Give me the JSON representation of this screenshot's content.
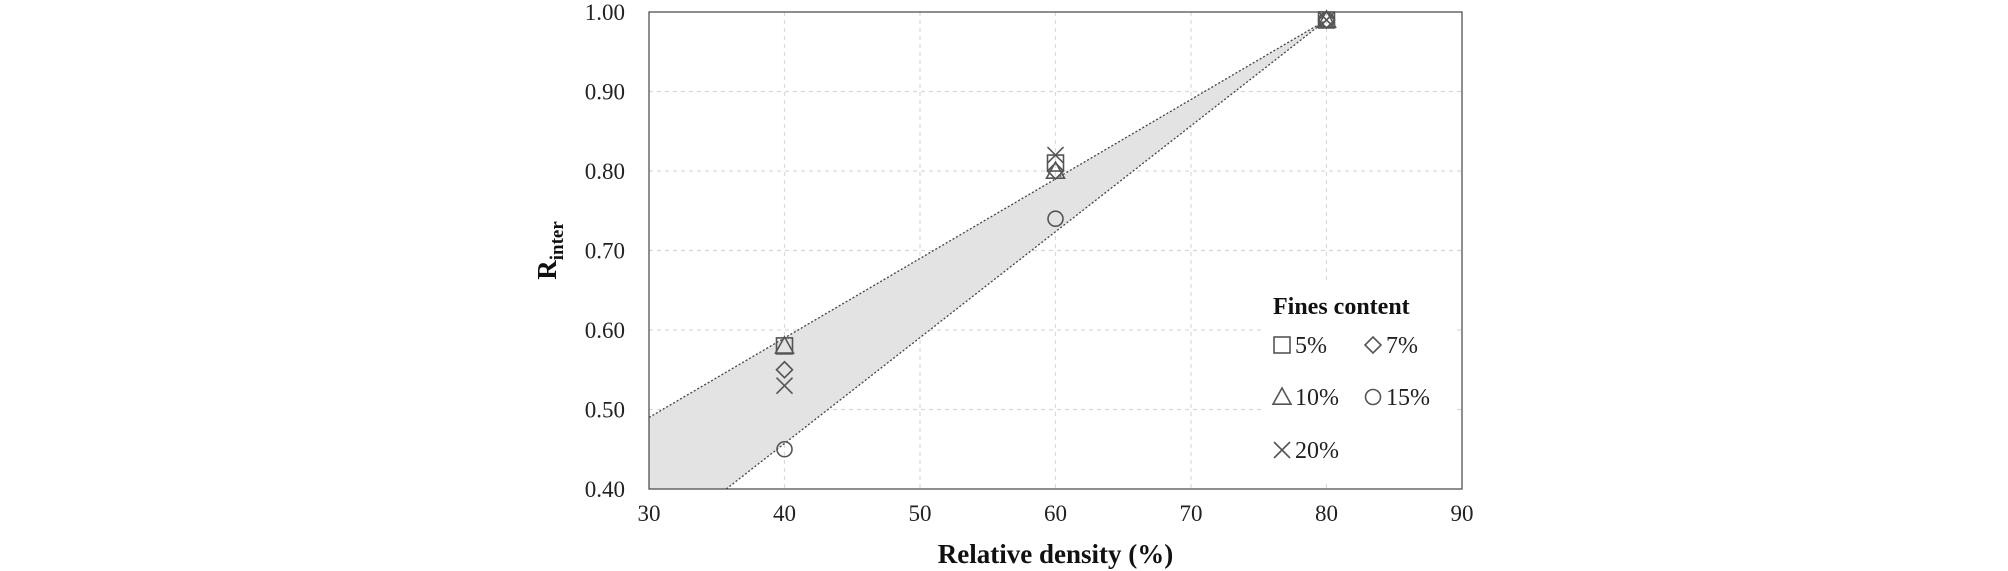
{
  "chart_data": {
    "type": "scatter",
    "xlabel": "Relative density (%)",
    "ylabel_main": "R",
    "ylabel_sub": "inter",
    "xlim": [
      30,
      90
    ],
    "ylim": [
      0.4,
      1.0
    ],
    "xticks": [
      30,
      40,
      50,
      60,
      70,
      80,
      90
    ],
    "xtick_labels": [
      "30",
      "40",
      "50",
      "60",
      "70",
      "80",
      "90"
    ],
    "yticks": [
      0.4,
      0.5,
      0.6,
      0.7,
      0.8,
      0.9,
      1.0
    ],
    "ytick_labels": [
      "0.40",
      "0.50",
      "0.60",
      "0.70",
      "0.80",
      "0.90",
      "1.00"
    ],
    "grid": true,
    "legend_title": "Fines content",
    "legend_position": "right",
    "series": [
      {
        "name": "5%",
        "marker": "square",
        "x": [
          40,
          60,
          80
        ],
        "y": [
          0.58,
          0.81,
          0.99
        ]
      },
      {
        "name": "7%",
        "marker": "diamond",
        "x": [
          40,
          60,
          80
        ],
        "y": [
          0.55,
          0.8,
          0.99
        ]
      },
      {
        "name": "10%",
        "marker": "triangle",
        "x": [
          40,
          60,
          80
        ],
        "y": [
          0.58,
          0.8,
          0.99
        ]
      },
      {
        "name": "15%",
        "marker": "circle",
        "x": [
          40,
          60,
          80
        ],
        "y": [
          0.45,
          0.74,
          0.99
        ]
      },
      {
        "name": "20%",
        "marker": "cross",
        "x": [
          40,
          60,
          80
        ],
        "y": [
          0.53,
          0.82,
          0.99
        ]
      }
    ],
    "bounds": {
      "upper": {
        "x": [
          30,
          80
        ],
        "y": [
          0.49,
          0.99
        ]
      },
      "lower": {
        "x": [
          35.7,
          80
        ],
        "y": [
          0.4,
          0.99
        ]
      }
    },
    "colors": {
      "marker": "#555555",
      "band_fill": "#e3e3e3",
      "bound_line": "#444444",
      "grid": "#d9d9d9",
      "axis": "#444444"
    }
  }
}
